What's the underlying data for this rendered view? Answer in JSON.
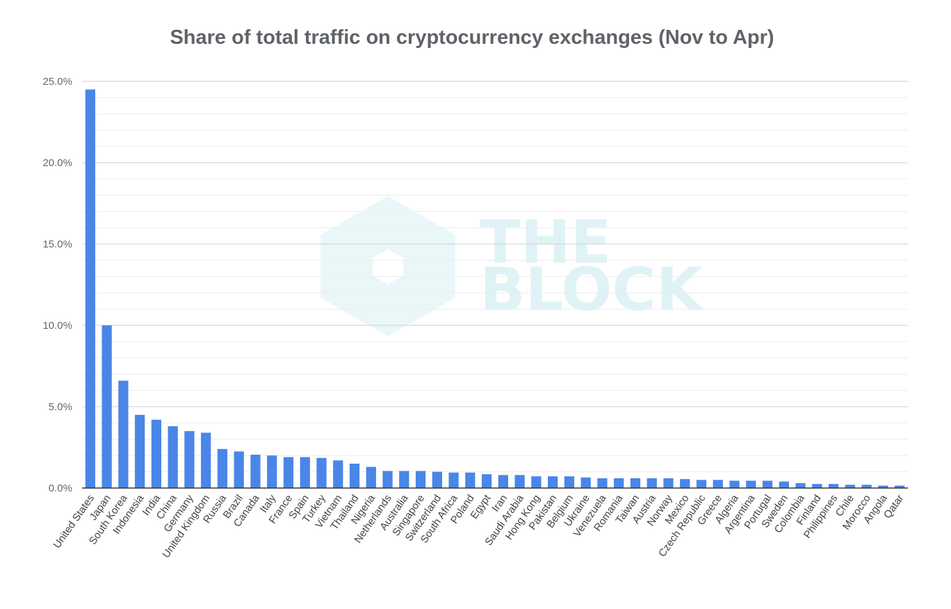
{
  "chart_data": {
    "type": "bar",
    "title": "Share of total traffic on cryptocurrency exchanges (Nov to Apr)",
    "xlabel": "",
    "ylabel": "",
    "ylim": [
      0,
      25
    ],
    "y_ticks": [
      "0.0%",
      "5.0%",
      "10.0%",
      "15.0%",
      "20.0%",
      "25.0%"
    ],
    "grid": true,
    "bar_color": "#4a86e8",
    "categories": [
      "United States",
      "Japan",
      "South Korea",
      "Indonesia",
      "India",
      "China",
      "Germany",
      "United Kingdom",
      "Russia",
      "Brazil",
      "Canada",
      "Italy",
      "France",
      "Spain",
      "Turkey",
      "Vietnam",
      "Thailand",
      "Nigeria",
      "Netherlands",
      "Australia",
      "Singapore",
      "Switzerland",
      "South Africa",
      "Poland",
      "Egypt",
      "Iran",
      "Saudi Arabia",
      "Hong Kong",
      "Pakistan",
      "Belgium",
      "Ukraine",
      "Venezuela",
      "Romania",
      "Taiwan",
      "Austria",
      "Norway",
      "Mexico",
      "Czech Republic",
      "Greece",
      "Algeria",
      "Argentina",
      "Portugal",
      "Sweden",
      "Colombia",
      "Finland",
      "Philippines",
      "Chile",
      "Morocco",
      "Angola",
      "Qatar"
    ],
    "values": [
      24.5,
      10.0,
      6.6,
      4.5,
      4.2,
      3.8,
      3.5,
      3.4,
      2.4,
      2.25,
      2.05,
      2.0,
      1.9,
      1.9,
      1.85,
      1.7,
      1.5,
      1.3,
      1.05,
      1.05,
      1.05,
      1.0,
      0.95,
      0.95,
      0.85,
      0.8,
      0.8,
      0.72,
      0.72,
      0.72,
      0.65,
      0.6,
      0.6,
      0.6,
      0.6,
      0.6,
      0.55,
      0.5,
      0.5,
      0.45,
      0.45,
      0.45,
      0.4,
      0.3,
      0.25,
      0.25,
      0.2,
      0.2,
      0.15,
      0.15
    ]
  },
  "watermark": {
    "line1": "THE",
    "line2": "BLOCK",
    "color": "#dff3f6"
  }
}
